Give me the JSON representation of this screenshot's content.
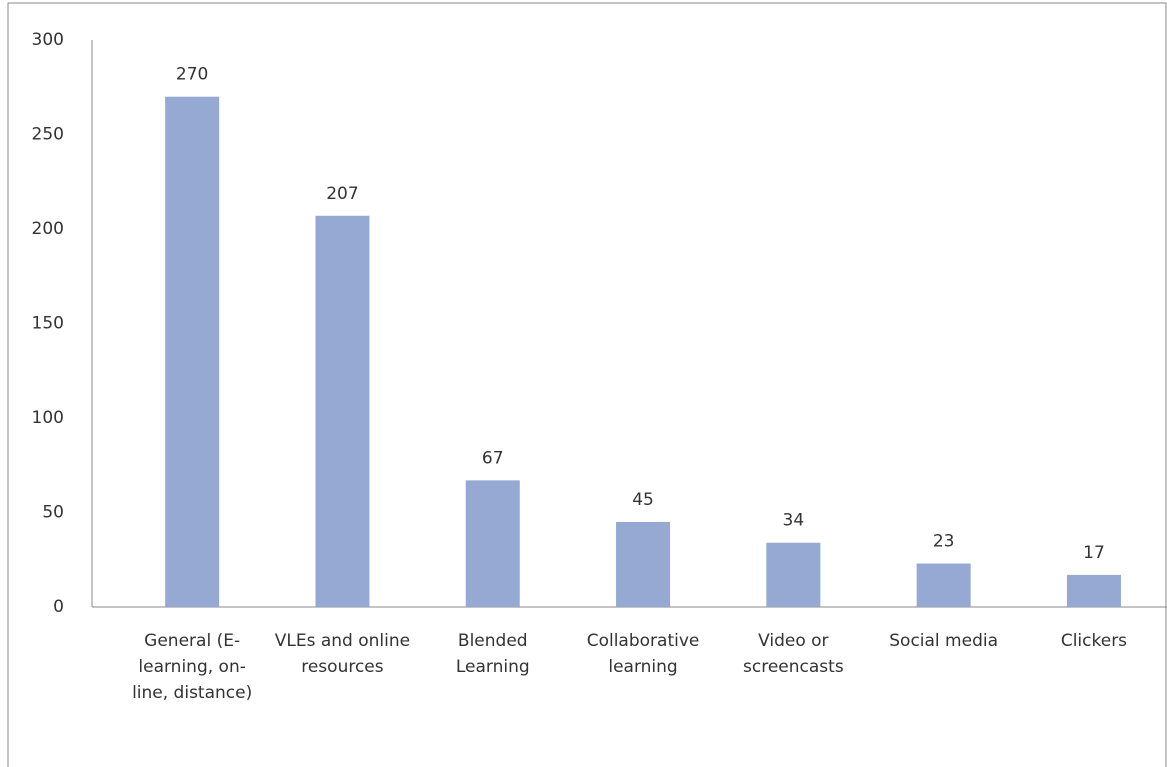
{
  "chart_data": {
    "type": "bar",
    "categories": [
      "General (E-learning, on-line, distance)",
      "VLEs and online resources",
      "Blended Learning",
      "Collaborative learning",
      "Video or screencasts",
      "Social media",
      "Clickers"
    ],
    "values": [
      270,
      207,
      67,
      45,
      34,
      23,
      17
    ],
    "color": "#95a9d3",
    "ylim": [
      0,
      300
    ],
    "yticks": [
      0,
      50,
      100,
      150,
      200,
      250,
      300
    ],
    "grid": false
  }
}
